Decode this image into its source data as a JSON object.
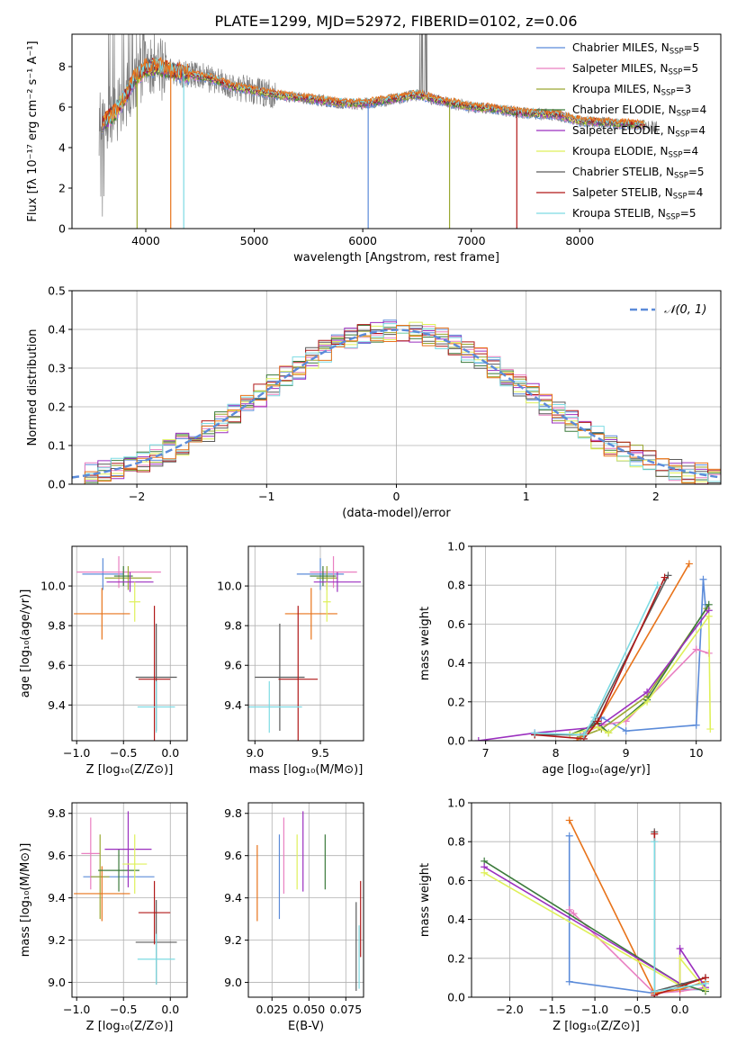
{
  "figure_title": "PLATE=1299, MJD=52972, FIBERID=0102, z=0.06",
  "colors": {
    "Chabrier MILES": "#5b8bd9",
    "Salpeter MILES": "#e97fc1",
    "Kroupa MILES": "#9aa832",
    "Chabrier ELODIE": "#3b7a3b",
    "Salpeter ELODIE": "#9b2fbf",
    "Kroupa ELODIE": "#dff05a",
    "Chabrier STELIB": "#5a5a5a",
    "Salpeter STELIB": "#b01818",
    "Kroupa STELIB": "#7ddbe3",
    "data": "#7f7f7f",
    "orange": "#e8731a"
  },
  "chart_data": [
    {
      "id": "spectrum",
      "type": "line",
      "title": "PLATE=1299, MJD=52972, FIBERID=0102, z=0.06",
      "xlabel": "wavelength [Angstrom, rest frame]",
      "ylabel": "Flux [fλ 10⁻¹⁷ erg cm⁻² s⁻¹ A⁻¹]",
      "xlim": [
        3320,
        9300
      ],
      "ylim": [
        0,
        9.6
      ],
      "xticks": [
        4000,
        5000,
        6000,
        7000,
        8000
      ],
      "yticks": [
        0,
        2,
        4,
        6,
        8
      ],
      "grid": false,
      "legend_position": "upper-right",
      "legend": [
        {
          "base": "Chabrier MILES, N",
          "sub": "SSP",
          "tail": "=5",
          "color_key": "Chabrier MILES"
        },
        {
          "base": "Salpeter MILES, N",
          "sub": "SSP",
          "tail": "=5",
          "color_key": "Salpeter MILES"
        },
        {
          "base": "Kroupa MILES, N",
          "sub": "SSP",
          "tail": "=3",
          "color_key": "Kroupa MILES"
        },
        {
          "base": "Chabrier ELODIE, N",
          "sub": "SSP",
          "tail": "=4",
          "color_key": "Chabrier ELODIE"
        },
        {
          "base": "Salpeter ELODIE, N",
          "sub": "SSP",
          "tail": "=4",
          "color_key": "Salpeter ELODIE"
        },
        {
          "base": "Kroupa ELODIE, N",
          "sub": "SSP",
          "tail": "=4",
          "color_key": "Kroupa ELODIE"
        },
        {
          "base": "Chabrier STELIB, N",
          "sub": "SSP",
          "tail": "=5",
          "color_key": "Chabrier STELIB"
        },
        {
          "base": "Salpeter STELIB, N",
          "sub": "SSP",
          "tail": "=4",
          "color_key": "Salpeter STELIB"
        },
        {
          "base": "Kroupa STELIB, N",
          "sub": "SSP",
          "tail": "=5",
          "color_key": "Kroupa STELIB"
        }
      ],
      "continuum_knots": {
        "wavelength": [
          3600,
          3700,
          3800,
          3900,
          4000,
          4100,
          4200,
          4400,
          4600,
          4800,
          5000,
          5200,
          5500,
          5800,
          6000,
          6300,
          6500,
          6800,
          7000,
          7200,
          7500,
          7800,
          8000,
          8300,
          8600,
          8700
        ],
        "flux": [
          5.2,
          5.6,
          6.4,
          7.4,
          7.9,
          8.0,
          7.8,
          7.6,
          7.4,
          7.0,
          6.8,
          6.6,
          6.4,
          6.2,
          6.15,
          6.4,
          6.6,
          6.2,
          6.0,
          5.9,
          5.7,
          5.6,
          5.3,
          5.2,
          5.1,
          5.0
        ]
      }
    },
    {
      "id": "residuals",
      "type": "bar",
      "xlabel": "(data-model)/error",
      "ylabel": "Normed distribution",
      "xlim": [
        -2.5,
        2.5
      ],
      "ylim": [
        0,
        0.5
      ],
      "xticks": [
        -2,
        -1,
        0,
        1,
        2
      ],
      "xticklabels": [
        "−2",
        "−1",
        "0",
        "1",
        "2"
      ],
      "yticks": [
        0.0,
        0.1,
        0.2,
        0.3,
        0.4,
        0.5
      ],
      "yticklabels": [
        "0.0",
        "0.1",
        "0.2",
        "0.3",
        "0.4",
        "0.5"
      ],
      "grid": true,
      "bin_width": 0.1,
      "legend_position": "upper-right",
      "legend": {
        "label": "𝒩(0, 1)",
        "style": "dashed",
        "color_key": "Chabrier MILES"
      },
      "curve": "normal(0,1) pdf"
    },
    {
      "id": "age-vs-Z",
      "type": "scatter",
      "xlabel": "Z [log₁₀(Z/Z⊙)]",
      "ylabel": "age  [log₁₀(age/yr)]",
      "xlim": [
        -1.05,
        0.18
      ],
      "ylim": [
        9.22,
        10.2
      ],
      "xticks": [
        -1.0,
        -0.5,
        0.0
      ],
      "xticklabels": [
        "−1.0",
        "−0.5",
        "0.0"
      ],
      "yticks": [
        9.4,
        9.6,
        9.8,
        10.0
      ],
      "yticklabels": [
        "9.4",
        "9.6",
        "9.8",
        "10.0"
      ],
      "grid": true,
      "points": [
        {
          "color_key": "Chabrier MILES",
          "x": -0.72,
          "xerr": 0.22,
          "y": 10.06,
          "yerr": 0.08
        },
        {
          "color_key": "Salpeter MILES",
          "x": -0.55,
          "xerr": 0.45,
          "y": 10.07,
          "yerr": 0.08
        },
        {
          "color_key": "Kroupa MILES",
          "x": -0.45,
          "xerr": 0.25,
          "y": 10.04,
          "yerr": 0.06
        },
        {
          "color_key": "orange",
          "x": -0.73,
          "xerr": 0.3,
          "y": 9.86,
          "yerr": 0.13
        },
        {
          "color_key": "Chabrier ELODIE",
          "x": -0.5,
          "xerr": 0.1,
          "y": 10.05,
          "yerr": 0.05
        },
        {
          "color_key": "Salpeter ELODIE",
          "x": -0.43,
          "xerr": 0.25,
          "y": 10.02,
          "yerr": 0.05
        },
        {
          "color_key": "Kroupa ELODIE",
          "x": -0.38,
          "xerr": 0.06,
          "y": 9.92,
          "yerr": 0.1
        },
        {
          "color_key": "Chabrier STELIB",
          "x": -0.15,
          "xerr": 0.22,
          "y": 9.54,
          "yerr": 0.27
        },
        {
          "color_key": "Salpeter STELIB",
          "x": -0.17,
          "xerr": 0.17,
          "y": 9.53,
          "yerr": 0.37
        },
        {
          "color_key": "Kroupa STELIB",
          "x": -0.15,
          "xerr": 0.2,
          "y": 9.39,
          "yerr": 0.13
        }
      ]
    },
    {
      "id": "age-vs-mass",
      "type": "scatter",
      "xlabel": "mass [log₁₀(M/M⊙)]",
      "ylabel": "",
      "xlim": [
        8.95,
        9.83
      ],
      "ylim": [
        9.22,
        10.2
      ],
      "xticks": [
        9.0,
        9.5
      ],
      "xticklabels": [
        "9.0",
        "9.5"
      ],
      "yticks": [
        9.4,
        9.6,
        9.8,
        10.0
      ],
      "yticklabels": [
        "9.4",
        "9.6",
        "9.8",
        "10.0"
      ],
      "grid": true,
      "points": [
        {
          "color_key": "Chabrier MILES",
          "x": 9.5,
          "xerr": 0.18,
          "y": 10.06,
          "yerr": 0.08
        },
        {
          "color_key": "Salpeter MILES",
          "x": 9.6,
          "xerr": 0.18,
          "y": 10.07,
          "yerr": 0.08
        },
        {
          "color_key": "Kroupa MILES",
          "x": 9.55,
          "xerr": 0.08,
          "y": 10.04,
          "yerr": 0.06
        },
        {
          "color_key": "orange",
          "x": 9.43,
          "xerr": 0.2,
          "y": 9.86,
          "yerr": 0.13
        },
        {
          "color_key": "Chabrier ELODIE",
          "x": 9.52,
          "xerr": 0.1,
          "y": 10.05,
          "yerr": 0.05
        },
        {
          "color_key": "Salpeter ELODIE",
          "x": 9.63,
          "xerr": 0.18,
          "y": 10.02,
          "yerr": 0.05
        },
        {
          "color_key": "Kroupa ELODIE",
          "x": 9.55,
          "xerr": 0.03,
          "y": 9.92,
          "yerr": 0.1
        },
        {
          "color_key": "Chabrier STELIB",
          "x": 9.19,
          "xerr": 0.19,
          "y": 9.54,
          "yerr": 0.27
        },
        {
          "color_key": "Salpeter STELIB",
          "x": 9.33,
          "xerr": 0.15,
          "y": 9.53,
          "yerr": 0.37
        },
        {
          "color_key": "Kroupa STELIB",
          "x": 9.11,
          "xerr": 0.25,
          "y": 9.39,
          "yerr": 0.13
        }
      ]
    },
    {
      "id": "mass-weight-vs-age",
      "type": "line",
      "xlabel": "age  [log₁₀(age/yr)]",
      "ylabel": "mass weight",
      "xlim": [
        6.8,
        10.35
      ],
      "ylim": [
        0,
        1.0
      ],
      "xticks": [
        7,
        8,
        9,
        10
      ],
      "xticklabels": [
        "7",
        "8",
        "9",
        "10"
      ],
      "yticks": [
        0.0,
        0.2,
        0.4,
        0.6,
        0.8,
        1.0
      ],
      "yticklabels": [
        "0.0",
        "0.2",
        "0.4",
        "0.6",
        "0.8",
        "1.0"
      ],
      "grid": true,
      "series": [
        {
          "color_key": "Chabrier MILES",
          "x": [
            8.35,
            8.65,
            9.0,
            10.0,
            10.1,
            10.13
          ],
          "y": [
            0.02,
            0.12,
            0.05,
            0.08,
            0.83,
            0.7
          ]
        },
        {
          "color_key": "Salpeter MILES",
          "x": [
            8.35,
            8.65,
            9.0,
            10.0,
            10.18
          ],
          "y": [
            0.03,
            0.08,
            0.1,
            0.47,
            0.45
          ]
        },
        {
          "color_key": "Kroupa MILES",
          "x": [
            8.35,
            8.65,
            9.3,
            10.15
          ],
          "y": [
            0.02,
            0.06,
            0.23,
            0.68
          ]
        },
        {
          "color_key": "orange",
          "x": [
            8.3,
            8.6,
            9.9
          ],
          "y": [
            0.0,
            0.1,
            0.91
          ]
        },
        {
          "color_key": "Chabrier ELODIE",
          "x": [
            8.2,
            8.6,
            8.75,
            9.3,
            10.18
          ],
          "y": [
            0.03,
            0.09,
            0.04,
            0.21,
            0.7
          ]
        },
        {
          "color_key": "Salpeter ELODIE",
          "x": [
            6.9,
            7.7,
            8.6,
            9.3,
            10.18
          ],
          "y": [
            0.0,
            0.04,
            0.07,
            0.25,
            0.67
          ]
        },
        {
          "color_key": "Kroupa ELODIE",
          "x": [
            8.2,
            8.6,
            8.75,
            9.3,
            10.18,
            10.2
          ],
          "y": [
            0.03,
            0.07,
            0.04,
            0.2,
            0.64,
            0.06
          ]
        },
        {
          "color_key": "Chabrier STELIB",
          "x": [
            7.7,
            8.4,
            8.55,
            9.6
          ],
          "y": [
            0.03,
            0.03,
            0.1,
            0.85
          ]
        },
        {
          "color_key": "Salpeter STELIB",
          "x": [
            7.7,
            8.4,
            8.6,
            9.55
          ],
          "y": [
            0.03,
            0.01,
            0.1,
            0.84
          ]
        },
        {
          "color_key": "Kroupa STELIB",
          "x": [
            7.7,
            8.4,
            8.55,
            9.45
          ],
          "y": [
            0.04,
            0.03,
            0.12,
            0.8
          ]
        }
      ]
    },
    {
      "id": "mass-vs-Z",
      "type": "scatter",
      "xlabel": "Z [log₁₀(Z/Z⊙)]",
      "ylabel": "mass [log₁₀(M/M⊙)]",
      "xlim": [
        -1.05,
        0.18
      ],
      "ylim": [
        8.93,
        9.85
      ],
      "xticks": [
        -1.0,
        -0.5,
        0.0
      ],
      "xticklabels": [
        "−1.0",
        "−0.5",
        "0.0"
      ],
      "yticks": [
        9.0,
        9.2,
        9.4,
        9.6,
        9.8
      ],
      "yticklabels": [
        "9.0",
        "9.2",
        "9.4",
        "9.6",
        "9.8"
      ],
      "grid": true,
      "points": [
        {
          "color_key": "Chabrier MILES",
          "x": -0.55,
          "xerr": 0.38,
          "y": 9.5,
          "yerr": 0.0
        },
        {
          "color_key": "Salpeter MILES",
          "x": -0.85,
          "xerr": 0.1,
          "y": 9.61,
          "yerr": 0.17
        },
        {
          "color_key": "Kroupa MILES",
          "x": -0.75,
          "xerr": 0.1,
          "y": 9.5,
          "yerr": 0.2
        },
        {
          "color_key": "orange",
          "x": -0.73,
          "xerr": 0.3,
          "y": 9.42,
          "yerr": 0.13
        },
        {
          "color_key": "Chabrier ELODIE",
          "x": -0.55,
          "xerr": 0.22,
          "y": 9.53,
          "yerr": 0.1
        },
        {
          "color_key": "Salpeter ELODIE",
          "x": -0.45,
          "xerr": 0.25,
          "y": 9.63,
          "yerr": 0.18
        },
        {
          "color_key": "Kroupa ELODIE",
          "x": -0.38,
          "xerr": 0.13,
          "y": 9.56,
          "yerr": 0.14
        },
        {
          "color_key": "Chabrier STELIB",
          "x": -0.15,
          "xerr": 0.22,
          "y": 9.19,
          "yerr": 0.2
        },
        {
          "color_key": "Salpeter STELIB",
          "x": -0.17,
          "xerr": 0.17,
          "y": 9.33,
          "yerr": 0.15
        },
        {
          "color_key": "Kroupa STELIB",
          "x": -0.15,
          "xerr": 0.2,
          "y": 9.11,
          "yerr": 0.12
        }
      ]
    },
    {
      "id": "mass-vs-ebv",
      "type": "scatter",
      "xlabel": "E(B-V)",
      "ylabel": "",
      "xlim": [
        0.009,
        0.087
      ],
      "ylim": [
        8.93,
        9.85
      ],
      "xticks": [
        0.025,
        0.05,
        0.075
      ],
      "xticklabels": [
        "0.025",
        "0.050",
        "0.075"
      ],
      "yticks": [
        9.0,
        9.2,
        9.4,
        9.6,
        9.8
      ],
      "yticklabels": [
        "9.0",
        "9.2",
        "9.4",
        "9.6",
        "9.8"
      ],
      "grid": true,
      "points": [
        {
          "color_key": "orange",
          "x": 0.015,
          "xerr": 0,
          "y": 9.47,
          "yerr": 0.18
        },
        {
          "color_key": "Chabrier MILES",
          "x": 0.03,
          "xerr": 0,
          "y": 9.5,
          "yerr": 0.2
        },
        {
          "color_key": "Salpeter MILES",
          "x": 0.033,
          "xerr": 0,
          "y": 9.6,
          "yerr": 0.18
        },
        {
          "color_key": "Kroupa ELODIE",
          "x": 0.042,
          "xerr": 0,
          "y": 9.57,
          "yerr": 0.13
        },
        {
          "color_key": "Salpeter ELODIE",
          "x": 0.046,
          "xerr": 0,
          "y": 9.62,
          "yerr": 0.19
        },
        {
          "color_key": "Chabrier ELODIE",
          "x": 0.061,
          "xerr": 0,
          "y": 9.57,
          "yerr": 0.13
        },
        {
          "color_key": "Chabrier STELIB",
          "x": 0.082,
          "xerr": 0,
          "y": 9.17,
          "yerr": 0.21
        },
        {
          "color_key": "Salpeter STELIB",
          "x": 0.085,
          "xerr": 0,
          "y": 9.3,
          "yerr": 0.18
        },
        {
          "color_key": "Kroupa STELIB",
          "x": 0.084,
          "xerr": 0,
          "y": 9.12,
          "yerr": 0.15
        }
      ]
    },
    {
      "id": "mass-weight-vs-Z",
      "type": "line",
      "xlabel": "Z [log₁₀(Z/Z⊙)]",
      "ylabel": "mass weight",
      "xlim": [
        -2.45,
        0.48
      ],
      "ylim": [
        0,
        1.0
      ],
      "xticks": [
        -2.0,
        -1.5,
        -1.0,
        -0.5,
        0.0
      ],
      "xticklabels": [
        "−2.0",
        "−1.5",
        "−1.0",
        "−0.5",
        "0.0"
      ],
      "yticks": [
        0.0,
        0.2,
        0.4,
        0.6,
        0.8,
        1.0
      ],
      "yticklabels": [
        "0.0",
        "0.2",
        "0.4",
        "0.6",
        "0.8",
        "1.0"
      ],
      "grid": true,
      "series": [
        {
          "color_key": "Chabrier MILES",
          "x": [
            -1.3,
            -1.3,
            -0.3,
            0.0,
            0.3
          ],
          "y": [
            0.83,
            0.08,
            0.02,
            0.04,
            0.04
          ]
        },
        {
          "color_key": "Salpeter MILES",
          "x": [
            -1.3,
            -1.25,
            -0.3,
            0.0,
            0.3
          ],
          "y": [
            0.45,
            0.43,
            0.02,
            0.03,
            0.05
          ]
        },
        {
          "color_key": "orange",
          "x": [
            -1.3,
            -0.3,
            0.0,
            0.3
          ],
          "y": [
            0.91,
            0.02,
            0.04,
            0.08
          ]
        },
        {
          "color_key": "Chabrier ELODIE",
          "x": [
            -2.3,
            0.0,
            0.3
          ],
          "y": [
            0.7,
            0.07,
            0.03
          ]
        },
        {
          "color_key": "Salpeter ELODIE",
          "x": [
            -2.3,
            0.0,
            0.0,
            0.3
          ],
          "y": [
            0.67,
            0.07,
            0.25,
            0.05
          ]
        },
        {
          "color_key": "Kroupa ELODIE",
          "x": [
            -2.3,
            0.0,
            0.0,
            0.3
          ],
          "y": [
            0.64,
            0.06,
            0.2,
            0.04
          ]
        },
        {
          "color_key": "Chabrier STELIB",
          "x": [
            -0.3,
            -0.3,
            0.3
          ],
          "y": [
            0.85,
            0.03,
            0.1
          ]
        },
        {
          "color_key": "Salpeter STELIB",
          "x": [
            -0.3,
            -0.3,
            0.3
          ],
          "y": [
            0.84,
            0.01,
            0.1
          ]
        },
        {
          "color_key": "Kroupa STELIB",
          "x": [
            -0.3,
            -0.3,
            0.3
          ],
          "y": [
            0.8,
            0.03,
            0.07
          ]
        }
      ]
    }
  ]
}
